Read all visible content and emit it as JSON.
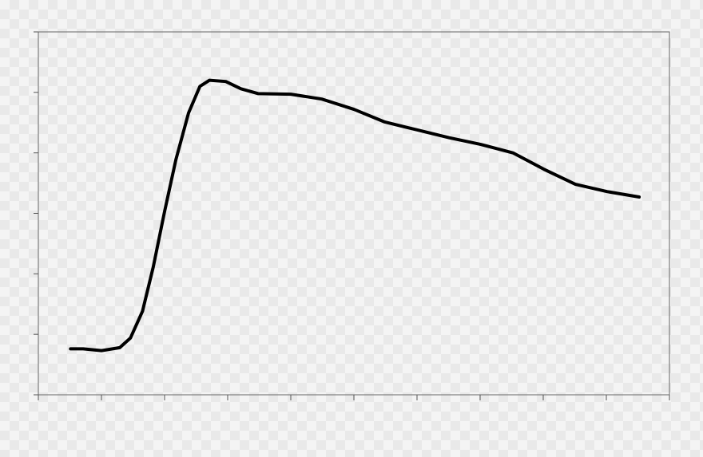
{
  "chart_data": {
    "type": "line",
    "x": [
      0.51,
      0.71,
      1.0,
      1.29,
      1.46,
      1.65,
      1.82,
      2.0,
      2.18,
      2.38,
      2.56,
      2.71,
      2.97,
      3.21,
      3.48,
      4.0,
      4.49,
      5.0,
      5.49,
      6.0,
      6.51,
      7.01,
      7.52,
      8.01,
      8.51,
      9.01,
      9.52
    ],
    "series": [
      {
        "color": "#000000",
        "values": [
          0.76,
          0.76,
          0.73,
          0.78,
          0.94,
          1.38,
          2.11,
          3.03,
          3.89,
          4.66,
          5.1,
          5.2,
          5.18,
          5.06,
          4.98,
          4.97,
          4.89,
          4.72,
          4.51,
          4.38,
          4.25,
          4.14,
          4.0,
          3.73,
          3.48,
          3.36,
          3.27
        ]
      }
    ],
    "xlim": [
      0,
      10
    ],
    "xticks": [
      0,
      1,
      2,
      3,
      4,
      5,
      6,
      7,
      8,
      9,
      10
    ],
    "ylim": [
      0,
      6
    ],
    "yticks": [
      0,
      1,
      2,
      3,
      4,
      5,
      6
    ]
  }
}
